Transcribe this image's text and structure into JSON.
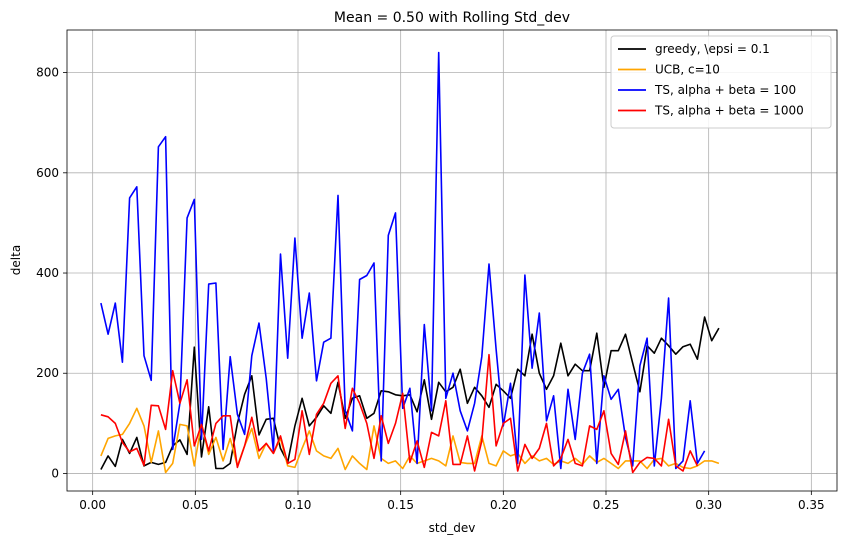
{
  "chart_data": {
    "type": "line",
    "title": "Mean = 0.50 with Rolling Std_dev",
    "xlabel": "std_dev",
    "ylabel": "delta",
    "xlim": [
      -0.0125,
      0.3625
    ],
    "ylim": [
      -35,
      885
    ],
    "xticks": [
      0.0,
      0.05,
      0.1,
      0.15,
      0.2,
      0.25,
      0.3,
      0.35
    ],
    "xtick_labels": [
      "0.00",
      "0.05",
      "0.10",
      "0.15",
      "0.20",
      "0.25",
      "0.30",
      "0.35"
    ],
    "yticks": [
      0,
      200,
      400,
      600,
      800
    ],
    "ytick_labels": [
      "0",
      "200",
      "400",
      "600",
      "800"
    ],
    "grid": true,
    "legend_position": "top-right",
    "x_start": 0.004,
    "x_step": 0.0035,
    "series": [
      {
        "name": "greedy, \\epsi = 0.1",
        "color": "#000000",
        "values": [
          8,
          35,
          14,
          68,
          40,
          72,
          15,
          22,
          18,
          22,
          55,
          67,
          38,
          252,
          33,
          133,
          10,
          10,
          20,
          100,
          158,
          195,
          77,
          108,
          110,
          50,
          22,
          95,
          150,
          95,
          112,
          135,
          120,
          182,
          110,
          150,
          155,
          110,
          120,
          165,
          163,
          157,
          155,
          157,
          123,
          187,
          108,
          182,
          163,
          172,
          208,
          140,
          172,
          155,
          132,
          178,
          165,
          150,
          208,
          195,
          278,
          200,
          168,
          195,
          260,
          195,
          218,
          205,
          205,
          280,
          172,
          245,
          245,
          278,
          220,
          163,
          255,
          240,
          270,
          255,
          238,
          253,
          258,
          228,
          312,
          265,
          290
        ]
      },
      {
        "name": "UCB, c=10",
        "color": "#ffa500",
        "values": [
          35,
          70,
          75,
          78,
          100,
          130,
          95,
          22,
          85,
          2,
          20,
          98,
          95,
          15,
          100,
          38,
          72,
          25,
          70,
          15,
          55,
          90,
          30,
          60,
          40,
          70,
          15,
          12,
          50,
          85,
          45,
          35,
          30,
          50,
          8,
          35,
          20,
          8,
          95,
          30,
          20,
          25,
          10,
          35,
          20,
          25,
          30,
          25,
          15,
          75,
          22,
          20,
          20,
          75,
          20,
          15,
          45,
          35,
          40,
          20,
          35,
          25,
          30,
          18,
          25,
          20,
          30,
          18,
          35,
          22,
          30,
          20,
          10,
          25,
          25,
          25,
          10,
          28,
          30,
          15,
          20,
          12,
          10,
          15,
          25,
          25,
          20
        ]
      },
      {
        "name": "TS, alpha + beta = 100",
        "color": "#0000ff",
        "values": [
          340,
          278,
          340,
          222,
          550,
          572,
          235,
          186,
          652,
          672,
          48,
          140,
          510,
          547,
          68,
          378,
          380,
          48,
          233,
          118,
          78,
          235,
          300,
          190,
          45,
          438,
          230,
          470,
          270,
          360,
          185,
          262,
          270,
          555,
          125,
          85,
          387,
          395,
          420,
          25,
          475,
          520,
          130,
          170,
          20,
          297,
          125,
          840,
          150,
          200,
          125,
          85,
          140,
          233,
          418,
          248,
          95,
          180,
          20,
          396,
          210,
          320,
          105,
          155,
          10,
          168,
          68,
          200,
          238,
          20,
          195,
          148,
          168,
          72,
          15,
          215,
          270,
          15,
          150,
          350,
          10,
          25,
          145,
          20,
          45
        ]
      },
      {
        "name": "TS, alpha + beta = 1000",
        "color": "#ff0000",
        "values": [
          117,
          113,
          100,
          62,
          43,
          50,
          16,
          136,
          135,
          88,
          205,
          140,
          187,
          55,
          98,
          45,
          100,
          115,
          115,
          12,
          55,
          112,
          45,
          60,
          40,
          75,
          20,
          28,
          125,
          38,
          118,
          140,
          180,
          195,
          90,
          170,
          140,
          100,
          30,
          115,
          60,
          100,
          160,
          22,
          65,
          12,
          82,
          75,
          145,
          18,
          18,
          75,
          5,
          65,
          237,
          55,
          100,
          110,
          5,
          58,
          30,
          50,
          100,
          15,
          30,
          68,
          20,
          15,
          95,
          88,
          125,
          40,
          18,
          85,
          2,
          22,
          32,
          30,
          15,
          108,
          15,
          5,
          45,
          15
        ]
      }
    ]
  }
}
